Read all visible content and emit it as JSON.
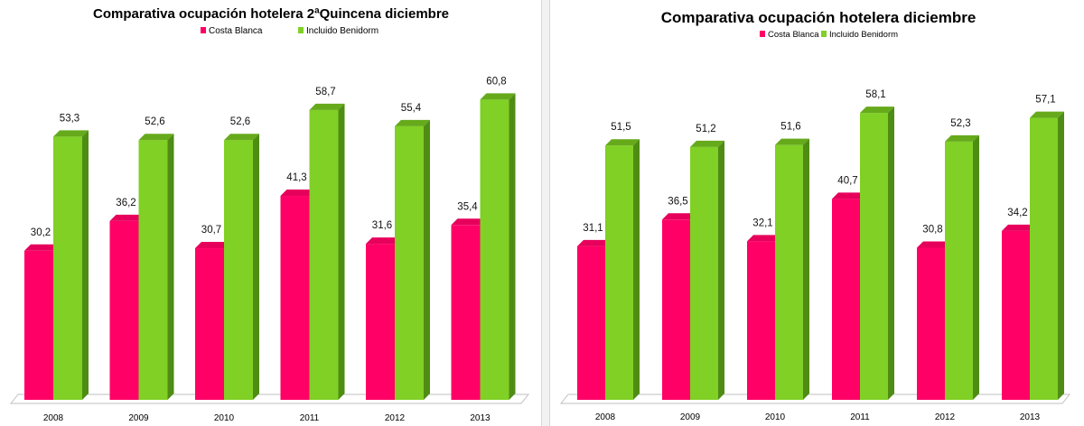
{
  "colors": {
    "costa_front": "#ff0066",
    "costa_side": "#b8004a",
    "costa_top": "#e6005c",
    "benidorm_front": "#80d025",
    "benidorm_side": "#4f8c14",
    "benidorm_top": "#66aa1c"
  },
  "chart_data": [
    {
      "type": "bar",
      "title": "Comparativa ocupación hotelera 2ªQuincena diciembre",
      "categories": [
        "2008",
        "2009",
        "2010",
        "2011",
        "2012",
        "2013"
      ],
      "series": [
        {
          "name": "Costa Blanca",
          "values": [
            30.2,
            36.2,
            30.7,
            41.3,
            31.6,
            35.4
          ],
          "labels": [
            "30,2",
            "36,2",
            "30,7",
            "41,3",
            "31,6",
            "35,4"
          ]
        },
        {
          "name": "Incluido Benidorm",
          "values": [
            53.3,
            52.6,
            52.6,
            58.7,
            55.4,
            60.8
          ],
          "labels": [
            "53,3",
            "52,6",
            "52,6",
            "58,7",
            "55,4",
            "60,8"
          ]
        }
      ],
      "ylim": [
        0,
        70
      ],
      "grid": false,
      "legend": "top"
    },
    {
      "type": "bar",
      "title": "Comparativa ocupación hotelera diciembre",
      "categories": [
        "2008",
        "2009",
        "2010",
        "2011",
        "2012",
        "2013"
      ],
      "series": [
        {
          "name": "Costa Blanca",
          "values": [
            31.1,
            36.5,
            32.1,
            40.7,
            30.8,
            34.2
          ],
          "labels": [
            "31,1",
            "36,5",
            "32,1",
            "40,7",
            "30,8",
            "34,2"
          ]
        },
        {
          "name": "Incluido Benidorm",
          "values": [
            51.5,
            51.2,
            51.6,
            58.1,
            52.3,
            57.1
          ],
          "labels": [
            "51,5",
            "51,2",
            "51,6",
            "58,1",
            "52,3",
            "57,1"
          ]
        }
      ],
      "ylim": [
        0,
        70
      ],
      "grid": false,
      "legend": "top"
    }
  ]
}
